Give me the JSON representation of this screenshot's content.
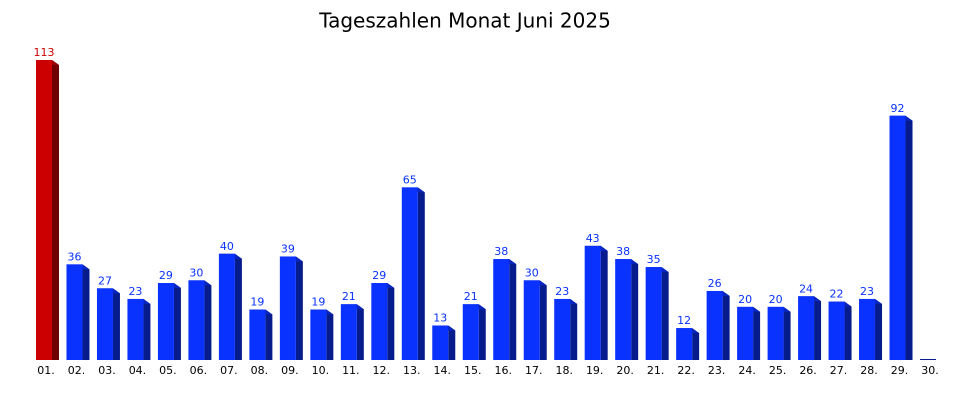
{
  "chart_data": {
    "type": "bar3d",
    "title": "Tageszahlen Monat Juni 2025",
    "categories": [
      "01.",
      "02.",
      "03.",
      "04.",
      "05.",
      "06.",
      "07.",
      "08.",
      "09.",
      "10.",
      "11.",
      "12.",
      "13.",
      "14.",
      "15.",
      "16.",
      "17.",
      "18.",
      "19.",
      "20.",
      "21.",
      "22.",
      "23.",
      "24.",
      "25.",
      "26.",
      "27.",
      "28.",
      "29.",
      "30."
    ],
    "values": [
      113,
      36,
      27,
      23,
      29,
      30,
      40,
      19,
      39,
      19,
      21,
      29,
      65,
      13,
      21,
      38,
      30,
      23,
      43,
      38,
      35,
      12,
      26,
      20,
      20,
      24,
      22,
      23,
      92,
      0
    ],
    "colors": [
      "#cc0000",
      "#0a32ff",
      "#0a32ff",
      "#0a32ff",
      "#0a32ff",
      "#0a32ff",
      "#0a32ff",
      "#0a32ff",
      "#0a32ff",
      "#0a32ff",
      "#0a32ff",
      "#0a32ff",
      "#0a32ff",
      "#0a32ff",
      "#0a32ff",
      "#0a32ff",
      "#0a32ff",
      "#0a32ff",
      "#0a32ff",
      "#0a32ff",
      "#0a32ff",
      "#0a32ff",
      "#0a32ff",
      "#0a32ff",
      "#0a32ff",
      "#0a32ff",
      "#0a32ff",
      "#0a32ff",
      "#0a32ff",
      "#0a32ff"
    ]
  }
}
